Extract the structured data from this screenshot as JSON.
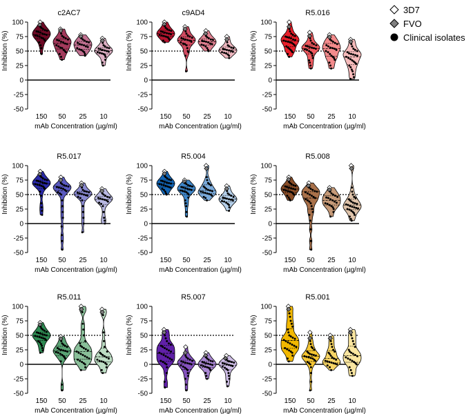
{
  "figure": {
    "y_axis_label": "Inhibition (%)",
    "x_axis_label": "mAb Concentration (µg/ml)",
    "reference_line_value": 50
  },
  "legend": {
    "items": [
      {
        "label": "3D7",
        "shape": "diamond",
        "fill": "#ffffff"
      },
      {
        "label": "FVO",
        "shape": "diamond",
        "fill": "#808080"
      },
      {
        "label": "Clinical isolates",
        "shape": "circle",
        "fill": "#000000"
      }
    ]
  },
  "chart_data": [
    {
      "type": "violin",
      "title": "c2AC7",
      "categories": [
        "150",
        "50",
        "25",
        "10"
      ],
      "ylim": [
        -50,
        100
      ],
      "yticks": [
        -50,
        -25,
        0,
        25,
        50,
        75,
        100
      ],
      "xlabel": "mAb Concentration (µg/ml)",
      "ylabel": "Inhibition (%)",
      "colors": [
        "#6d0a25",
        "#a33a5c",
        "#c07090",
        "#ddb0c4"
      ],
      "values": [
        [
          100,
          95,
          92,
          90,
          88,
          86,
          85,
          84,
          83,
          82,
          80,
          79,
          78,
          77,
          76,
          75,
          73,
          72,
          70,
          68,
          65,
          60,
          55,
          45
        ],
        [
          88,
          85,
          80,
          76,
          74,
          72,
          70,
          69,
          68,
          66,
          65,
          63,
          62,
          60,
          58,
          56,
          55,
          52,
          50,
          48,
          45,
          40,
          35
        ],
        [
          78,
          75,
          72,
          70,
          68,
          66,
          65,
          64,
          62,
          61,
          60,
          58,
          57,
          55,
          53,
          52,
          50,
          48,
          45,
          42
        ],
        [
          72,
          68,
          64,
          60,
          58,
          56,
          55,
          54,
          53,
          52,
          51,
          50,
          49,
          48,
          47,
          46,
          45,
          43,
          40,
          35,
          30,
          25
        ]
      ]
    },
    {
      "type": "violin",
      "title": "c9AD4",
      "categories": [
        "150",
        "50",
        "25",
        "10"
      ],
      "ylim": [
        -50,
        100
      ],
      "yticks": [
        -50,
        -25,
        0,
        25,
        50,
        75,
        100
      ],
      "xlabel": "mAb Concentration (µg/ml)",
      "ylabel": "Inhibition (%)",
      "colors": [
        "#b51530",
        "#cf4a60",
        "#e08090",
        "#efb8c0"
      ],
      "values": [
        [
          100,
          96,
          93,
          90,
          88,
          86,
          85,
          84,
          83,
          82,
          81,
          80,
          79,
          78,
          77,
          76,
          75,
          74,
          72,
          70,
          68,
          65
        ],
        [
          92,
          88,
          84,
          80,
          77,
          75,
          73,
          72,
          71,
          70,
          69,
          68,
          66,
          65,
          63,
          62,
          60,
          55,
          50,
          48,
          42,
          15
        ],
        [
          85,
          80,
          76,
          74,
          72,
          70,
          69,
          68,
          67,
          66,
          65,
          63,
          62,
          61,
          60,
          58,
          55,
          52,
          50
        ],
        [
          75,
          70,
          65,
          60,
          58,
          56,
          55,
          54,
          53,
          52,
          51,
          50,
          49,
          48,
          47,
          46,
          44,
          42,
          38
        ]
      ]
    },
    {
      "type": "violin",
      "title": "R5.016",
      "categories": [
        "150",
        "50",
        "25",
        "10"
      ],
      "ylim": [
        -50,
        100
      ],
      "yticks": [
        -50,
        -25,
        0,
        25,
        50,
        75,
        100
      ],
      "xlabel": "mAb Concentration (µg/ml)",
      "ylabel": "Inhibition (%)",
      "colors": [
        "#e8202a",
        "#ee5a5f",
        "#f38b8c",
        "#f7bcbc"
      ],
      "values": [
        [
          100,
          92,
          88,
          84,
          80,
          78,
          76,
          75,
          74,
          73,
          72,
          70,
          69,
          68,
          67,
          66,
          65,
          64,
          62,
          60,
          58,
          56,
          54,
          52,
          50,
          48,
          45,
          40
        ],
        [
          82,
          76,
          72,
          68,
          64,
          62,
          60,
          59,
          58,
          57,
          56,
          55,
          54,
          53,
          52,
          50,
          48,
          46,
          42,
          38,
          34,
          30,
          25,
          20
        ],
        [
          78,
          74,
          70,
          68,
          66,
          64,
          62,
          60,
          58,
          56,
          55,
          54,
          52,
          50,
          48,
          45,
          42,
          40,
          38,
          35,
          30,
          25,
          20
        ],
        [
          70,
          66,
          62,
          58,
          54,
          52,
          50,
          48,
          46,
          45,
          44,
          43,
          42,
          40,
          38,
          36,
          34,
          32,
          30,
          28,
          25,
          22,
          18,
          15,
          10,
          5,
          2
        ]
      ]
    },
    {
      "type": "violin",
      "title": "R5.017",
      "categories": [
        "150",
        "50",
        "25",
        "10"
      ],
      "ylim": [
        -50,
        100
      ],
      "yticks": [
        -50,
        -25,
        0,
        25,
        50,
        75,
        100
      ],
      "xlabel": "mAb Concentration (µg/ml)",
      "ylabel": "Inhibition (%)",
      "colors": [
        "#2a2aa8",
        "#5a5ac0",
        "#8a8ad0",
        "#b8b8e2"
      ],
      "values": [
        [
          90,
          85,
          82,
          80,
          78,
          76,
          75,
          74,
          73,
          72,
          71,
          70,
          69,
          68,
          67,
          66,
          65,
          64,
          62,
          60,
          55,
          48,
          35,
          28,
          22,
          15
        ],
        [
          80,
          75,
          70,
          68,
          66,
          65,
          64,
          63,
          62,
          61,
          60,
          58,
          56,
          54,
          52,
          50,
          40,
          30,
          20,
          10,
          -5,
          -20,
          -30,
          -45
        ],
        [
          70,
          66,
          62,
          58,
          56,
          55,
          54,
          53,
          52,
          51,
          50,
          49,
          48,
          46,
          44,
          40,
          30,
          20,
          10,
          0,
          -15
        ],
        [
          60,
          56,
          52,
          50,
          48,
          46,
          45,
          44,
          43,
          42,
          41,
          40,
          38,
          36,
          34,
          30,
          20,
          10,
          5,
          0
        ]
      ]
    },
    {
      "type": "violin",
      "title": "R5.004",
      "categories": [
        "150",
        "50",
        "25",
        "10"
      ],
      "ylim": [
        -50,
        100
      ],
      "yticks": [
        -50,
        -25,
        0,
        25,
        50,
        75,
        100
      ],
      "xlabel": "mAb Concentration (µg/ml)",
      "ylabel": "Inhibition (%)",
      "colors": [
        "#1264b4",
        "#3f86c8",
        "#7aaada",
        "#b4cfea"
      ],
      "values": [
        [
          90,
          86,
          82,
          80,
          78,
          76,
          75,
          74,
          73,
          72,
          71,
          70,
          69,
          68,
          67,
          66,
          65,
          64,
          63,
          62,
          60,
          58,
          55,
          52,
          50
        ],
        [
          75,
          72,
          70,
          68,
          66,
          65,
          64,
          63,
          62,
          61,
          60,
          59,
          58,
          57,
          56,
          55,
          54,
          52,
          50,
          45,
          40,
          35,
          30,
          20,
          12
        ],
        [
          100,
          95,
          80,
          75,
          70,
          68,
          66,
          64,
          62,
          60,
          58,
          57,
          56,
          55,
          54,
          53,
          52,
          51,
          50,
          48,
          46,
          44,
          40
        ],
        [
          65,
          60,
          56,
          52,
          50,
          48,
          46,
          45,
          44,
          43,
          42,
          41,
          40,
          39,
          38,
          36,
          34,
          32,
          28,
          22
        ]
      ]
    },
    {
      "type": "violin",
      "title": "R5.008",
      "categories": [
        "150",
        "50",
        "25",
        "10"
      ],
      "ylim": [
        -50,
        100
      ],
      "yticks": [
        -50,
        -25,
        0,
        25,
        50,
        75,
        100
      ],
      "xlabel": "mAb Concentration (µg/ml)",
      "ylabel": "Inhibition (%)",
      "colors": [
        "#8a4e28",
        "#a9714a",
        "#c69a78",
        "#dfc3aa"
      ],
      "values": [
        [
          80,
          76,
          72,
          70,
          68,
          66,
          65,
          64,
          63,
          62,
          61,
          60,
          59,
          58,
          57,
          56,
          55,
          54,
          52,
          50,
          48,
          45,
          42,
          40
        ],
        [
          70,
          65,
          62,
          60,
          58,
          56,
          55,
          54,
          52,
          50,
          48,
          46,
          44,
          42,
          40,
          38,
          35,
          30,
          25,
          20,
          15,
          5,
          -10,
          -30,
          -45
        ],
        [
          62,
          58,
          55,
          52,
          50,
          48,
          46,
          45,
          44,
          42,
          40,
          38,
          36,
          35,
          34,
          32,
          30,
          28,
          25,
          20,
          12
        ],
        [
          100,
          95,
          62,
          55,
          50,
          46,
          44,
          42,
          40,
          38,
          36,
          35,
          34,
          33,
          32,
          30,
          29,
          28,
          27,
          26,
          25,
          24,
          22,
          20,
          18,
          15,
          12,
          8,
          5
        ]
      ]
    },
    {
      "type": "violin",
      "title": "R5.011",
      "categories": [
        "150",
        "50",
        "25",
        "10"
      ],
      "ylim": [
        -50,
        100
      ],
      "yticks": [
        -50,
        -25,
        0,
        25,
        50,
        75,
        100
      ],
      "xlabel": "mAb Concentration (µg/ml)",
      "ylabel": "Inhibition (%)",
      "colors": [
        "#2e8a52",
        "#5aa374",
        "#89bf99",
        "#bcdcc3"
      ],
      "values": [
        [
          72,
          68,
          65,
          62,
          60,
          58,
          56,
          55,
          54,
          53,
          52,
          51,
          50,
          49,
          48,
          47,
          46,
          45,
          44,
          42,
          40,
          38,
          35,
          32,
          28,
          24,
          20
        ],
        [
          48,
          44,
          40,
          36,
          34,
          32,
          30,
          28,
          26,
          25,
          24,
          23,
          22,
          21,
          20,
          18,
          16,
          14,
          12,
          10,
          5,
          -35,
          -45
        ],
        [
          100,
          95,
          90,
          70,
          60,
          50,
          40,
          36,
          32,
          30,
          28,
          26,
          24,
          22,
          20,
          18,
          16,
          14,
          12,
          10,
          8,
          6,
          4,
          2,
          0,
          -5,
          -10
        ],
        [
          95,
          90,
          85,
          55,
          40,
          30,
          22,
          20,
          18,
          16,
          14,
          12,
          10,
          8,
          6,
          5,
          4,
          2,
          0,
          -5,
          -10,
          -15
        ]
      ]
    },
    {
      "type": "violin",
      "title": "R5.007",
      "categories": [
        "150",
        "50",
        "25",
        "10"
      ],
      "ylim": [
        -50,
        100
      ],
      "yticks": [
        -50,
        -25,
        0,
        25,
        50,
        75,
        100
      ],
      "xlabel": "mAb Concentration (µg/ml)",
      "ylabel": "Inhibition (%)",
      "colors": [
        "#6020a8",
        "#8452bd",
        "#a987d2",
        "#cebde6"
      ],
      "values": [
        [
          60,
          55,
          50,
          45,
          40,
          36,
          34,
          32,
          30,
          28,
          26,
          24,
          22,
          20,
          18,
          16,
          14,
          12,
          10,
          8,
          6,
          4,
          2,
          0,
          -5,
          -15,
          -30,
          -40
        ],
        [
          30,
          20,
          15,
          12,
          10,
          8,
          6,
          5,
          4,
          3,
          2,
          1,
          0,
          -2,
          -4,
          -6,
          -8,
          -10,
          -15,
          -20,
          -25,
          -35,
          -45
        ],
        [
          20,
          15,
          12,
          10,
          8,
          6,
          5,
          4,
          3,
          2,
          1,
          0,
          -1,
          -2,
          -3,
          -4,
          -5,
          -6,
          -8,
          -10,
          -15,
          -20,
          -25
        ],
        [
          15,
          10,
          8,
          6,
          5,
          4,
          3,
          2,
          1,
          0,
          -1,
          -2,
          -3,
          -4,
          -6,
          -8,
          -10,
          -15,
          -20,
          -25,
          -30,
          -38
        ]
      ]
    },
    {
      "type": "violin",
      "title": "R5.001",
      "categories": [
        "150",
        "50",
        "25",
        "10"
      ],
      "ylim": [
        -50,
        100
      ],
      "yticks": [
        -50,
        -25,
        0,
        25,
        50,
        75,
        100
      ],
      "xlabel": "mAb Concentration (µg/ml)",
      "ylabel": "Inhibition (%)",
      "colors": [
        "#f2b800",
        "#f5c633",
        "#f7d566",
        "#fae6a0"
      ],
      "values": [
        [
          100,
          95,
          88,
          82,
          75,
          70,
          65,
          60,
          55,
          50,
          48,
          46,
          44,
          42,
          40,
          38,
          36,
          34,
          32,
          30,
          28,
          26,
          24,
          22,
          20,
          15,
          10,
          5
        ],
        [
          55,
          45,
          40,
          35,
          30,
          28,
          25,
          22,
          20,
          18,
          17,
          16,
          15,
          14,
          13,
          12,
          11,
          10,
          8,
          6,
          4,
          2,
          0,
          -5,
          -15,
          -30,
          -45
        ],
        [
          50,
          45,
          40,
          35,
          30,
          25,
          22,
          20,
          18,
          15,
          12,
          10,
          8,
          6,
          5,
          4,
          3,
          2,
          1,
          0,
          -2,
          -5,
          -10
        ],
        [
          60,
          55,
          50,
          45,
          40,
          35,
          30,
          25,
          22,
          20,
          18,
          16,
          14,
          12,
          10,
          8,
          6,
          4,
          2,
          0,
          -5,
          -10,
          -15,
          -20
        ]
      ]
    }
  ]
}
